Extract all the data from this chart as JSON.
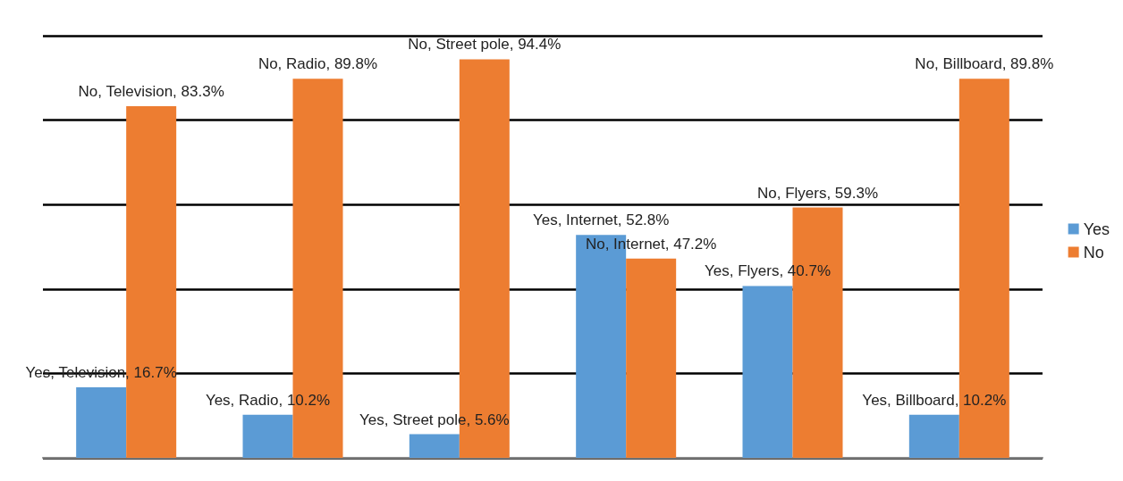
{
  "chart_data": {
    "type": "bar",
    "categories": [
      null,
      null,
      null,
      null,
      null,
      null
    ],
    "series": [
      {
        "name": "Yes",
        "color": "#5b9bd5",
        "values": [
          16.7,
          10.2,
          5.6,
          52.8,
          40.7,
          10.2
        ],
        "value_labels": [
          "Yes, Television, 16.7%",
          "Yes, Radio, 10.2%",
          "Yes, Street pole, 5.6%",
          "Yes, Internet, 52.8%",
          "Yes, Flyers, 40.7%",
          "Yes, Billboard, 10.2%"
        ]
      },
      {
        "name": "No",
        "color": "#ed7d31",
        "values": [
          83.3,
          89.8,
          94.4,
          47.2,
          59.3,
          89.8
        ],
        "value_labels": [
          "No, Television, 83.3%",
          "No, Radio, 89.8%",
          "No, Street pole, 94.4%",
          "No, Internet, 47.2%",
          "No, Flyers, 59.3%",
          "No, Billboard, 89.8%"
        ]
      }
    ],
    "ylim": [
      0,
      100
    ],
    "yticks": [
      0,
      20,
      40,
      60,
      80,
      100
    ],
    "grid": "y",
    "legend": "right",
    "tick_labels": false
  }
}
